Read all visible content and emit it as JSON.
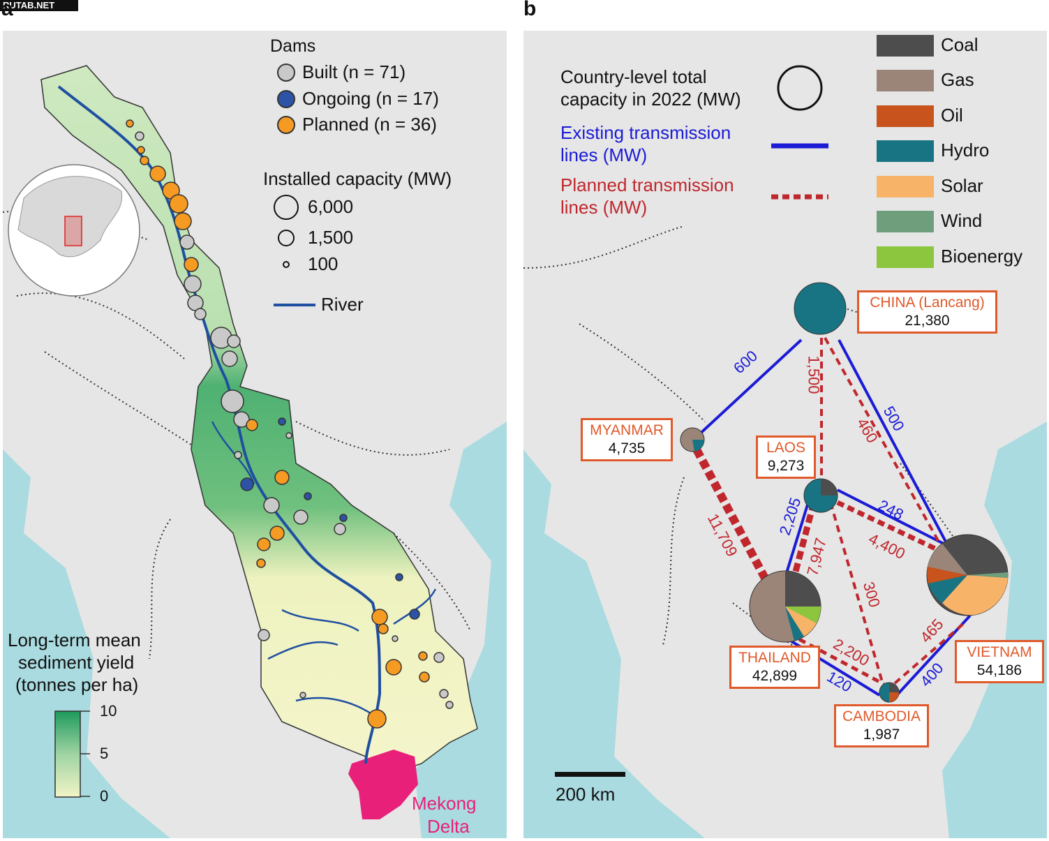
{
  "watermark": "RUTAB.NET",
  "panel_a": {
    "label": "a",
    "dams_title": "Dams",
    "dams": [
      {
        "label": "Built (n = 71)",
        "color": "#c9c9c9"
      },
      {
        "label": "Ongoing (n = 17)",
        "color": "#2c53a6"
      },
      {
        "label": "Planned (n = 36)",
        "color": "#f59a23"
      }
    ],
    "capacity_title": "Installed capacity (MW)",
    "capacity_sizes": [
      "6,000",
      "1,500",
      "100"
    ],
    "river_label": "River",
    "river_color": "#1f4fa0",
    "sediment_title": [
      "Long-term mean",
      "sediment yield",
      "(tonnes per ha)"
    ],
    "sediment_ticks": [
      "10",
      "5",
      "0"
    ],
    "delta_label": [
      "Mekong",
      "Delta"
    ],
    "delta_color": "#e8207a"
  },
  "panel_b": {
    "label": "b",
    "legend_capacity": [
      "Country-level total",
      "capacity in 2022 (MW)"
    ],
    "legend_existing": [
      "Existing transmission",
      "lines (MW)"
    ],
    "legend_planned": [
      "Planned transmission",
      "lines (MW)"
    ],
    "existing_color": "#1b1bd6",
    "planned_color": "#c0272d",
    "sources": [
      {
        "label": "Coal",
        "color": "#4d4d4d"
      },
      {
        "label": "Gas",
        "color": "#9b8578"
      },
      {
        "label": "Oil",
        "color": "#c8531d"
      },
      {
        "label": "Hydro",
        "color": "#187483"
      },
      {
        "label": "Solar",
        "color": "#f7b367"
      },
      {
        "label": "Wind",
        "color": "#6e9e7c"
      },
      {
        "label": "Bioenergy",
        "color": "#8cc63f"
      }
    ],
    "countries": [
      {
        "name": "CHINA (Lancang)",
        "capacity": "21,380"
      },
      {
        "name": "MYANMAR",
        "capacity": "4,735"
      },
      {
        "name": "LAOS",
        "capacity": "9,273"
      },
      {
        "name": "THAILAND",
        "capacity": "42,899"
      },
      {
        "name": "VIETNAM",
        "capacity": "54,186"
      },
      {
        "name": "CAMBODIA",
        "capacity": "1,987"
      }
    ],
    "existing_lines": [
      "600",
      "500",
      "2,205",
      "248",
      "120",
      "400"
    ],
    "planned_lines": [
      "1,500",
      "460",
      "11,709",
      "7,947",
      "4,400",
      "300",
      "2,200",
      "465"
    ],
    "scale_label": "200 km"
  }
}
